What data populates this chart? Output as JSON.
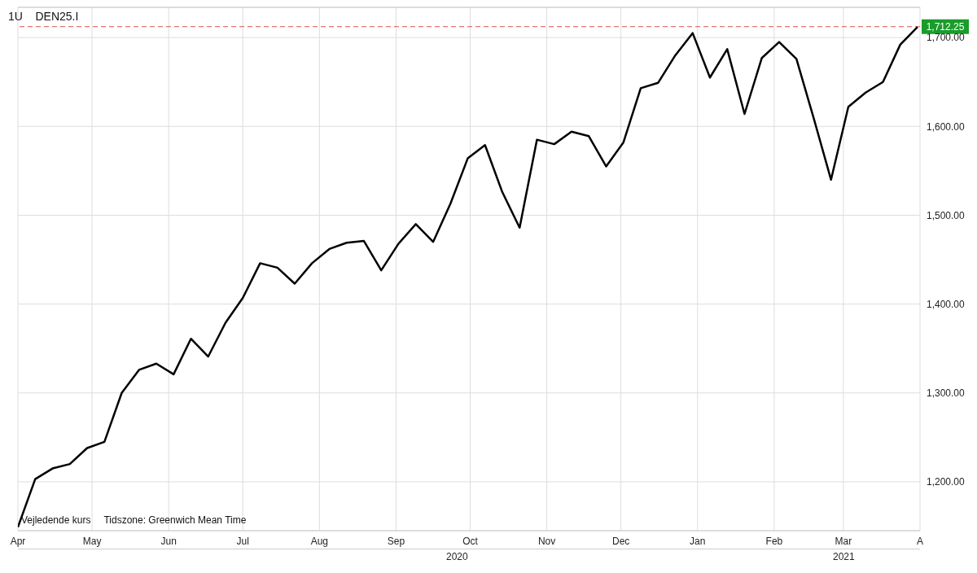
{
  "chart_data": {
    "type": "line",
    "title": "1U    DEN25.I",
    "x": [
      "2020-04-01",
      "2020-04-08",
      "2020-04-15",
      "2020-04-22",
      "2020-04-29",
      "2020-05-06",
      "2020-05-13",
      "2020-05-20",
      "2020-05-27",
      "2020-06-03",
      "2020-06-10",
      "2020-06-17",
      "2020-06-24",
      "2020-07-01",
      "2020-07-08",
      "2020-07-15",
      "2020-07-22",
      "2020-07-29",
      "2020-08-05",
      "2020-08-12",
      "2020-08-19",
      "2020-08-26",
      "2020-09-02",
      "2020-09-09",
      "2020-09-16",
      "2020-09-23",
      "2020-09-30",
      "2020-10-07",
      "2020-10-14",
      "2020-10-21",
      "2020-10-28",
      "2020-11-04",
      "2020-11-11",
      "2020-11-18",
      "2020-11-25",
      "2020-12-02",
      "2020-12-09",
      "2020-12-16",
      "2020-12-23",
      "2020-12-30",
      "2021-01-06",
      "2021-01-13",
      "2021-01-20",
      "2021-01-27",
      "2021-02-03",
      "2021-02-10",
      "2021-02-17",
      "2021-02-24",
      "2021-03-03",
      "2021-03-10",
      "2021-03-17",
      "2021-03-24",
      "2021-03-31"
    ],
    "series": [
      {
        "color": "#000000",
        "values": [
          1149,
          1203,
          1215,
          1220,
          1238,
          1245,
          1300,
          1326,
          1333,
          1321,
          1361,
          1341,
          1379,
          1407,
          1446,
          1441,
          1423,
          1446,
          1462,
          1469,
          1471,
          1438,
          1468,
          1490,
          1470,
          1513,
          1564,
          1579,
          1526,
          1486,
          1585,
          1580,
          1594,
          1589,
          1555,
          1582,
          1643,
          1649,
          1680,
          1705,
          1655,
          1687,
          1614,
          1677,
          1695,
          1676,
          1609,
          1540,
          1622,
          1638,
          1650,
          1692,
          1712
        ]
      }
    ],
    "xlim": [
      "2020-04-01",
      "2021-04-01"
    ],
    "xticks": [
      {
        "value": "2020-04-01",
        "label": "Apr"
      },
      {
        "value": "2020-05-01",
        "label": "May"
      },
      {
        "value": "2020-06-01",
        "label": "Jun"
      },
      {
        "value": "2020-07-01",
        "label": "Jul"
      },
      {
        "value": "2020-08-01",
        "label": "Aug"
      },
      {
        "value": "2020-09-01",
        "label": "Sep"
      },
      {
        "value": "2020-10-01",
        "label": "Oct"
      },
      {
        "value": "2020-11-01",
        "label": "Nov"
      },
      {
        "value": "2020-12-01",
        "label": "Dec"
      },
      {
        "value": "2021-01-01",
        "label": "Jan"
      },
      {
        "value": "2021-02-01",
        "label": "Feb"
      },
      {
        "value": "2021-03-01",
        "label": "Mar"
      },
      {
        "value": "2021-04-01",
        "label": "A"
      }
    ],
    "ylim": [
      1145,
      1734
    ],
    "yticks": [
      {
        "value": 1200,
        "label": "1,200.00"
      },
      {
        "value": 1300,
        "label": "1,300.00"
      },
      {
        "value": 1400,
        "label": "1,400.00"
      },
      {
        "value": 1500,
        "label": "1,500.00"
      },
      {
        "value": 1600,
        "label": "1,600.00"
      },
      {
        "value": 1700,
        "label": "1,700.00"
      }
    ],
    "ref_lines": [
      {
        "axis": "y",
        "value": 1712.25,
        "label": "1,712.25",
        "color": "#d9534f",
        "line_style": "dashed"
      }
    ],
    "annotations": [
      "Vejledende kurs",
      "Tidszone: Greenwich Mean Time",
      "2020",
      "2021"
    ],
    "grid": true,
    "legend": false,
    "marker": "none",
    "line_style": "solid"
  }
}
